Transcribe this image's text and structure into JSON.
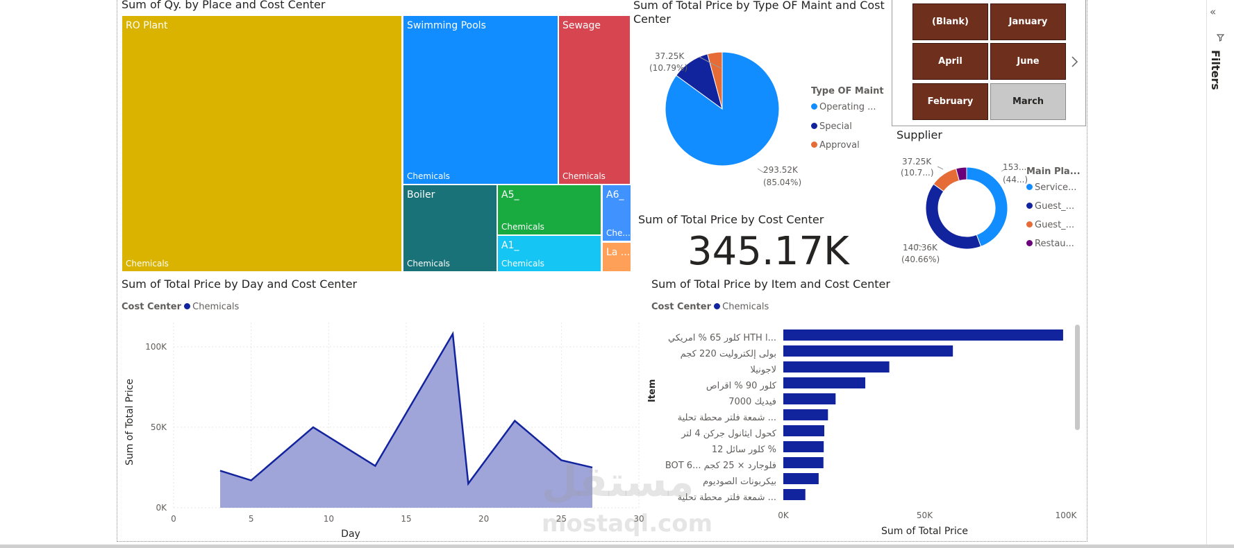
{
  "colors": {
    "treemap": [
      "#d9b300",
      "#118dff",
      "#d64550",
      "#197278",
      "#1aab40",
      "#15c6f4",
      "#4092ff",
      "#ffa058"
    ],
    "op": "#118dff",
    "special": "#12239e",
    "approval": "#e66c37",
    "rest": "#6b007b",
    "series": "#12239e",
    "area_fill": "#a0a5d9",
    "slicer": "#6e2f1c",
    "slicer_sel": "#c8c8c8"
  },
  "treemap": {
    "title": "Sum of Qy. by Place and Cost Center",
    "tiles": [
      {
        "name": "RO Plant",
        "sub": "Chemicals"
      },
      {
        "name": "Swimming Pools",
        "sub": "Chemicals"
      },
      {
        "name": "Sewage",
        "sub": "Chemicals"
      },
      {
        "name": "Boiler",
        "sub": "Chemicals"
      },
      {
        "name": "A5_",
        "sub": "Chemicals"
      },
      {
        "name": "A1_",
        "sub": "Chemicals"
      },
      {
        "name": "A6_",
        "sub": "Che..."
      },
      {
        "name": "La ...",
        "sub": ""
      }
    ]
  },
  "pie": {
    "title": "Sum of Total Price by Type OF Maint and Cost Center",
    "legend_title": "Type OF Maint",
    "legend": [
      "Operating ...",
      "Special",
      "Approval"
    ],
    "labels": {
      "op_value": "293.52K",
      "op_pct": "(85.04%)",
      "special_value": "37.25K",
      "special_pct": "(10.79%)"
    }
  },
  "month_slicer": {
    "buttons": [
      "(Blank)",
      "January",
      "April",
      "June",
      "February",
      "March"
    ],
    "selected": "March",
    "next_icon": "chevron-right-icon"
  },
  "supplier": {
    "title": "Supplier",
    "legend_title": "Main Pla...",
    "legend": [
      "Service...",
      "Guest_...",
      "Guest_...",
      "Restau..."
    ],
    "labels": {
      "a_value": "153...",
      "a_pct": "(44...)",
      "b_value": "37.25K",
      "b_pct": "(10.7...)",
      "c_value": "140.36K",
      "c_pct": "(40.66%)"
    }
  },
  "card": {
    "title": "Sum of Total Price by Cost Center",
    "value": "345.17K"
  },
  "line_chart": {
    "title": "Sum of Total Price by Day and Cost Center"
  },
  "bar_chart": {
    "title": "Sum of Total Price by Item and Cost Center"
  },
  "filters": {
    "label": "Filters",
    "collapse_icon": "double-chevron-left-icon",
    "filter_icon": "filter-icon"
  },
  "watermark": {
    "logo": "مستقل",
    "text": "mostaql.com"
  },
  "chart_data": [
    {
      "type": "area",
      "title": "Sum of Total Price by Day and Cost Center",
      "legend_title": "Cost Center",
      "xlabel": "Day",
      "ylabel": "Sum of Total Price",
      "x_ticks": [
        "0",
        "5",
        "10",
        "15",
        "20",
        "25",
        "30"
      ],
      "y_ticks": [
        "0K",
        "50K",
        "100K"
      ],
      "xlim": [
        0,
        30
      ],
      "ylim": [
        0,
        115000
      ],
      "grid": true,
      "legend_position": "top-left",
      "series": [
        {
          "name": "Chemicals",
          "x": [
            3,
            5,
            9,
            13,
            18,
            19,
            22,
            25,
            27
          ],
          "y": [
            23000,
            17000,
            50000,
            26000,
            108000,
            15000,
            54000,
            29500,
            25000
          ]
        }
      ]
    },
    {
      "type": "bar",
      "orientation": "horizontal",
      "title": "Sum of Total Price by Item and Cost Center",
      "legend_title": "Cost Center",
      "xlabel": "Sum of Total Price",
      "ylabel": "Item",
      "x_ticks": [
        "0K",
        "50K",
        "100K"
      ],
      "xlim": [
        0,
        100000
      ],
      "legend_position": "top-left",
      "categories": [
        "كلور 65 % امريكي HTH ا...",
        "بولى إلكتروليت 220 كجم",
        "لاجونيلا",
        "كلور 90 % اقراص",
        "فيديك 7000",
        "شمعة فلتر محطة تحلية ...",
        "كحول ايثانول جركن 4 لتر",
        "كلور سائل 12 %",
        "BOT 6... فلوجارد × 25 كجم",
        "بيكربونات الصوديوم",
        "شمعة فلتر محطة تحلية ..."
      ],
      "series": [
        {
          "name": "Chemicals",
          "values": [
            99000,
            60000,
            37500,
            29000,
            18500,
            15800,
            14500,
            14300,
            14200,
            12500,
            7800
          ]
        }
      ]
    },
    {
      "type": "pie",
      "title": "Sum of Total Price by Type OF Maint and Cost Center",
      "categories": [
        "Operating ...",
        "Special",
        "Approval"
      ],
      "values": [
        293520,
        37250,
        14400
      ],
      "legend_position": "right"
    },
    {
      "type": "pie",
      "variant": "donut",
      "title": "Supplier",
      "categories": [
        "Service...",
        "Guest_...",
        "Guest_...",
        "Restau..."
      ],
      "values": [
        153000,
        140360,
        37250,
        14500
      ],
      "legend_position": "right"
    }
  ]
}
